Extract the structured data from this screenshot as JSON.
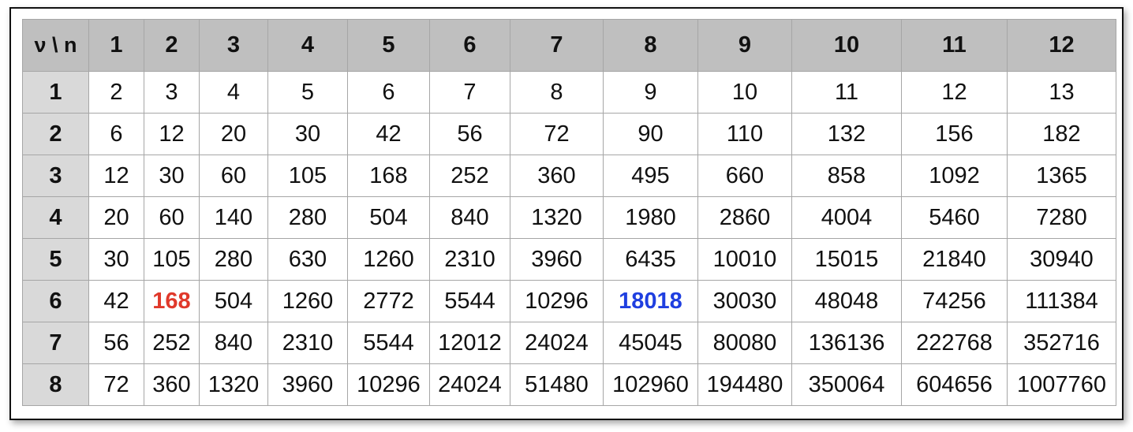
{
  "table": {
    "corner_label": "ν \\ n",
    "column_headers": [
      "1",
      "2",
      "3",
      "4",
      "5",
      "6",
      "7",
      "8",
      "9",
      "10",
      "11",
      "12"
    ],
    "rows": [
      {
        "label": "1",
        "cells": [
          "2",
          "3",
          "4",
          "5",
          "6",
          "7",
          "8",
          "9",
          "10",
          "11",
          "12",
          "13"
        ]
      },
      {
        "label": "2",
        "cells": [
          "6",
          "12",
          "20",
          "30",
          "42",
          "56",
          "72",
          "90",
          "110",
          "132",
          "156",
          "182"
        ]
      },
      {
        "label": "3",
        "cells": [
          "12",
          "30",
          "60",
          "105",
          "168",
          "252",
          "360",
          "495",
          "660",
          "858",
          "1092",
          "1365"
        ]
      },
      {
        "label": "4",
        "cells": [
          "20",
          "60",
          "140",
          "280",
          "504",
          "840",
          "1320",
          "1980",
          "2860",
          "4004",
          "5460",
          "7280"
        ]
      },
      {
        "label": "5",
        "cells": [
          "30",
          "105",
          "280",
          "630",
          "1260",
          "2310",
          "3960",
          "6435",
          "10010",
          "15015",
          "21840",
          "30940"
        ]
      },
      {
        "label": "6",
        "cells": [
          "42",
          "168",
          "504",
          "1260",
          "2772",
          "5544",
          "10296",
          "18018",
          "30030",
          "48048",
          "74256",
          "111384"
        ]
      },
      {
        "label": "7",
        "cells": [
          "56",
          "252",
          "840",
          "2310",
          "5544",
          "12012",
          "24024",
          "45045",
          "80080",
          "136136",
          "222768",
          "352716"
        ]
      },
      {
        "label": "8",
        "cells": [
          "72",
          "360",
          "1320",
          "3960",
          "10296",
          "24024",
          "51480",
          "102960",
          "194480",
          "350064",
          "604656",
          "1007760"
        ]
      }
    ],
    "highlights": [
      {
        "row": 6,
        "col": 2,
        "color": "#e0392b"
      },
      {
        "row": 6,
        "col": 8,
        "color": "#1f3fe0"
      }
    ],
    "colors": {
      "header_bg": "#bfbfbf",
      "row_header_bg": "#d9d9d9",
      "grid_line": "#a6a6a6"
    }
  }
}
